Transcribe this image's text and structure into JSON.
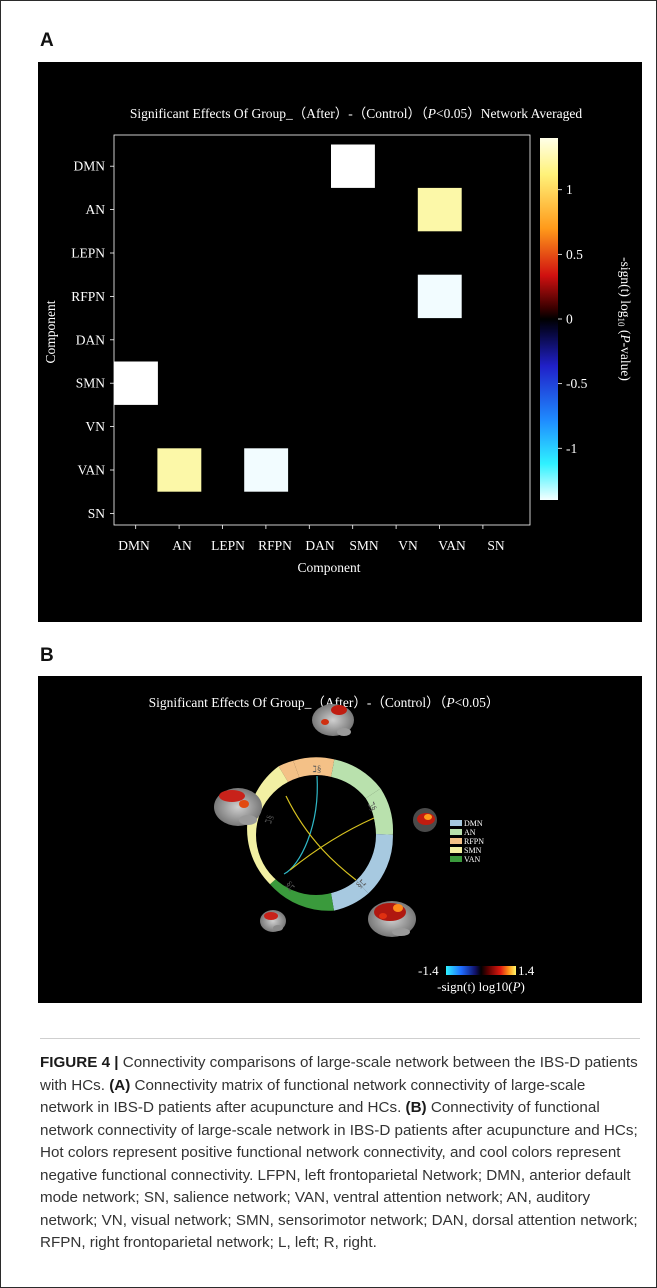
{
  "figure": {
    "panel_a_label": "A",
    "panel_b_label": "B"
  },
  "panel_a": {
    "title": "Significant Effects Of Group_（After）-（Control）（P<0.05）Network Averaged",
    "title_pre": "Significant Effects Of Group_（After）-（Control）（",
    "title_p": "P",
    "title_post": "<0.05）Network Averaged",
    "ylabel": "Component",
    "xlabel": "Component",
    "colorbar_label_pre": "-sign(t) log",
    "colorbar_label_sub": "10",
    "colorbar_label_p": "P",
    "colorbar_label_post": "-value)",
    "colorbar_label_open": "(",
    "colorbar_ticks": [
      "1",
      "0.5",
      "0",
      "-0.5",
      "-1"
    ],
    "colorbar_tick_values": [
      1,
      0.5,
      0,
      -0.5,
      -1
    ],
    "colorbar_range": [
      -1.4,
      1.4
    ]
  },
  "chart_data": {
    "type": "heatmap",
    "rows": [
      "DMN",
      "AN",
      "LEPN",
      "RFPN",
      "DAN",
      "SMN",
      "VN",
      "VAN",
      "SN"
    ],
    "columns": [
      "DMN",
      "AN",
      "LEPN",
      "RFPN",
      "DAN",
      "SMN",
      "VN",
      "VAN",
      "SN"
    ],
    "cells": [
      {
        "row": "DMN",
        "col": "SMN",
        "value": 1.4
      },
      {
        "row": "AN",
        "col": "VAN",
        "value": 1.15
      },
      {
        "row": "RFPN",
        "col": "VAN",
        "value": -1.4
      },
      {
        "row": "SMN",
        "col": "DMN",
        "value": 1.4
      },
      {
        "row": "VAN",
        "col": "AN",
        "value": 1.15
      },
      {
        "row": "VAN",
        "col": "RFPN",
        "value": -1.4
      }
    ],
    "background_value": 0,
    "colorbar_range": [
      -1.4,
      1.4
    ]
  },
  "panel_b": {
    "title_pre": "Significant Effects Of Group_（After）-（Control）（",
    "title_p": "P",
    "title_post": "<0.05）",
    "legend": [
      {
        "name": "DMN",
        "color": "#a7c9e0"
      },
      {
        "name": "AN",
        "color": "#b9e1ad"
      },
      {
        "name": "RFPN",
        "color": "#f4c187"
      },
      {
        "name": "SMN",
        "color": "#f2f0a3"
      },
      {
        "name": "VAN",
        "color": "#3a9a3c"
      }
    ],
    "ring_segments": [
      {
        "name": "RFPN",
        "color": "#f4c187",
        "label": "RFPN"
      },
      {
        "name": "AN",
        "color": "#b9e1ad",
        "label": "AN"
      },
      {
        "name": "DMN",
        "color": "#a7c9e0",
        "label": "DMN"
      },
      {
        "name": "VAN",
        "color": "#3a9a3c",
        "label": "VAN"
      },
      {
        "name": "SMN",
        "color": "#f2f0a3",
        "label": "SMN"
      }
    ],
    "colorbar_min": "-1.4",
    "colorbar_max": "1.4",
    "colorbar_label_pre": "-sign(t) log10(",
    "colorbar_label_p": "P",
    "colorbar_label_post": ")"
  },
  "caption": {
    "fig_label": "FIGURE 4 |",
    "lead": " Connectivity comparisons of large-scale network between the IBS-D patients with HCs. ",
    "a_tag": "(A)",
    "a_text": " Connectivity matrix of functional network connectivity of large-scale network in IBS-D patients after acupuncture and HCs. ",
    "b_tag": "(B)",
    "b_text": " Connectivity of functional network connectivity of large-scale network in IBS-D patients after acupuncture and HCs; Hot colors represent positive functional network connectivity, and cool colors represent negative functional connectivity. LFPN, left frontoparietal Network; DMN, anterior default mode network; SN, salience network; VAN, ventral attention network; AN, auditory network; VN, visual network; SMN, sensorimotor network; DAN, dorsal attention network; RFPN, right frontoparietal network; L, left; R, right."
  }
}
